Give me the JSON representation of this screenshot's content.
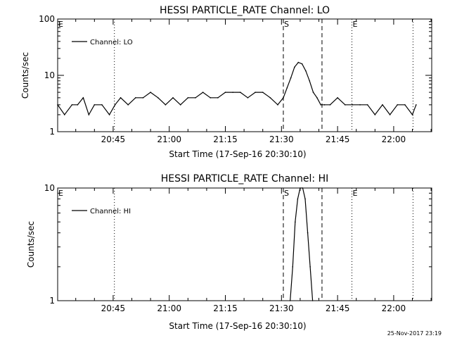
{
  "colors": {
    "background": "#ffffff",
    "foreground": "#000000"
  },
  "timestamp": "25-Nov-2017 23:19",
  "chart_data": [
    {
      "type": "line",
      "title": "HESSI PARTICLE_RATE Channel: LO",
      "xlabel": "Start Time (17-Sep-16 20:30:10)",
      "ylabel": "Counts/sec",
      "yscale": "log",
      "ylim": [
        1,
        100
      ],
      "xlim": [
        "20:30:10",
        "22:10:10"
      ],
      "ytick_labels": [
        "1",
        "10",
        "100"
      ],
      "yticks": [
        1,
        10,
        100
      ],
      "xtick_labels": [
        "20:45",
        "21:00",
        "21:15",
        "21:30",
        "21:45",
        "22:00"
      ],
      "legend": {
        "entries": [
          "Channel: LO"
        ],
        "position": "top-left"
      },
      "markers": [
        {
          "label": "E",
          "time": "20:30:10",
          "style": "dotted"
        },
        {
          "label": "",
          "time": "20:45:20",
          "style": "dotted"
        },
        {
          "label": "S",
          "time": "21:30:30",
          "style": "dashed"
        },
        {
          "label": "",
          "time": "21:40:50",
          "style": "dashed"
        },
        {
          "label": "E",
          "time": "21:48:50",
          "style": "dotted"
        },
        {
          "label": "",
          "time": "22:05:10",
          "style": "dotted"
        }
      ],
      "series": [
        {
          "name": "Channel: LO",
          "x": [
            "20:30:10",
            "20:32:00",
            "20:34:00",
            "20:35:30",
            "20:37:00",
            "20:38:30",
            "20:40:00",
            "20:42:00",
            "20:44:00",
            "20:45:30",
            "20:47:00",
            "20:49:00",
            "20:51:00",
            "20:53:00",
            "20:55:00",
            "20:57:00",
            "20:59:00",
            "21:01:00",
            "21:03:00",
            "21:05:00",
            "21:07:00",
            "21:09:00",
            "21:11:00",
            "21:13:00",
            "21:15:00",
            "21:17:00",
            "21:19:00",
            "21:21:00",
            "21:23:00",
            "21:25:00",
            "21:27:00",
            "21:29:00",
            "21:30:30",
            "21:31:30",
            "21:32:30",
            "21:33:30",
            "21:34:30",
            "21:35:30",
            "21:36:30",
            "21:37:30",
            "21:38:30",
            "21:39:30",
            "21:40:30",
            "21:41:30",
            "21:43:00",
            "21:45:00",
            "21:47:00",
            "21:49:00",
            "21:51:00",
            "21:53:00",
            "21:55:00",
            "21:57:00",
            "21:59:00",
            "22:01:00",
            "22:03:00",
            "22:05:00",
            "22:06:00"
          ],
          "y": [
            3,
            2,
            3,
            3,
            4,
            2,
            3,
            3,
            2,
            3,
            4,
            3,
            4,
            4,
            5,
            4,
            3,
            4,
            3,
            4,
            4,
            5,
            4,
            4,
            5,
            5,
            5,
            4,
            5,
            5,
            4,
            3,
            4,
            6,
            9,
            14,
            17,
            16,
            12,
            8,
            5,
            4,
            3,
            3,
            3,
            4,
            3,
            3,
            3,
            3,
            2,
            3,
            2,
            3,
            3,
            2,
            3
          ]
        }
      ]
    },
    {
      "type": "line",
      "title": "HESSI PARTICLE_RATE Channel: HI",
      "xlabel": "Start Time (17-Sep-16 20:30:10)",
      "ylabel": "Counts/sec",
      "yscale": "log",
      "ylim": [
        1,
        10
      ],
      "xlim": [
        "20:30:10",
        "22:10:10"
      ],
      "ytick_labels": [
        "1",
        "10"
      ],
      "yticks": [
        1,
        10
      ],
      "xtick_labels": [
        "20:45",
        "21:00",
        "21:15",
        "21:30",
        "21:45",
        "22:00"
      ],
      "legend": {
        "entries": [
          "Channel: HI"
        ],
        "position": "top-left"
      },
      "markers": [
        {
          "label": "E",
          "time": "20:30:10",
          "style": "dotted"
        },
        {
          "label": "",
          "time": "20:45:20",
          "style": "dotted"
        },
        {
          "label": "S",
          "time": "21:30:30",
          "style": "dashed"
        },
        {
          "label": "",
          "time": "21:40:50",
          "style": "dashed"
        },
        {
          "label": "E",
          "time": "21:48:50",
          "style": "dotted"
        },
        {
          "label": "",
          "time": "22:05:10",
          "style": "dotted"
        }
      ],
      "series": [
        {
          "name": "Channel: HI",
          "x": [
            "21:32:20",
            "21:33:00",
            "21:33:40",
            "21:34:20",
            "21:35:00",
            "21:35:40",
            "21:36:20",
            "21:37:00",
            "21:37:40",
            "21:38:20"
          ],
          "y": [
            1,
            2,
            5,
            8,
            10,
            10,
            8,
            4,
            2,
            1
          ]
        }
      ]
    }
  ]
}
